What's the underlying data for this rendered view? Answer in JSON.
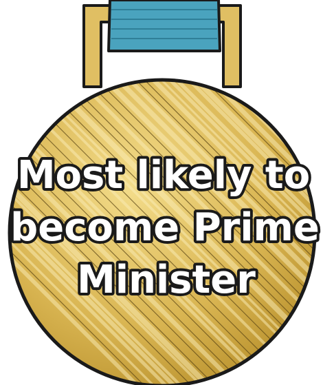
{
  "medal": {
    "lines": [
      "Most likely to",
      "become Prime",
      "Minister"
    ]
  }
}
